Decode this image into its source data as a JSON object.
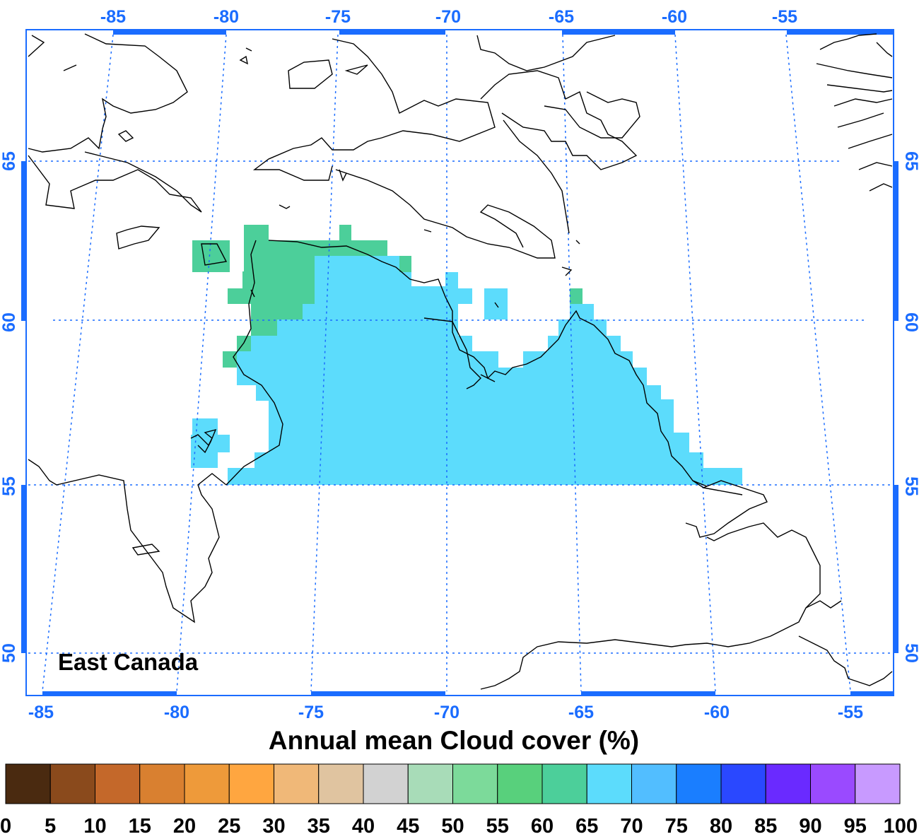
{
  "map": {
    "region_label": "East Canada",
    "title": "Annual mean Cloud cover (%)",
    "lon_ticks_top": [
      "-85",
      "-80",
      "-75",
      "-70",
      "-65",
      "-60",
      "-55"
    ],
    "lon_ticks_bottom": [
      "-85",
      "-80",
      "-75",
      "-70",
      "-65",
      "-60",
      "-55"
    ],
    "lat_ticks_left": [
      "65",
      "60",
      "55",
      "50"
    ],
    "lat_ticks_right": [
      "65",
      "60",
      "55",
      "50"
    ],
    "colors": {
      "axis": "#1a6cff",
      "grid": "#1a6cff",
      "coast": "#000000"
    }
  },
  "colorbar": {
    "labels": [
      "0",
      "5",
      "10",
      "15",
      "20",
      "25",
      "30",
      "35",
      "40",
      "45",
      "50",
      "55",
      "60",
      "65",
      "70",
      "75",
      "80",
      "85",
      "90",
      "95",
      "100"
    ],
    "colors": [
      "#4a2a10",
      "#8a4a1c",
      "#c4682a",
      "#d98030",
      "#ee9a3a",
      "#ffa640",
      "#f0b878",
      "#e0c4a0",
      "#d2d2d2",
      "#a8dcb8",
      "#7cda9a",
      "#58d07c",
      "#4ccf9a",
      "#5cdcfc",
      "#52beff",
      "#1a7eff",
      "#2a48ff",
      "#6a2aff",
      "#9a4aff",
      "#c89aff"
    ]
  },
  "fields": [
    {
      "name": "cloud-60-65",
      "color": "#4ccf9a"
    },
    {
      "name": "cloud-65-70",
      "color": "#5cdcfc"
    }
  ]
}
